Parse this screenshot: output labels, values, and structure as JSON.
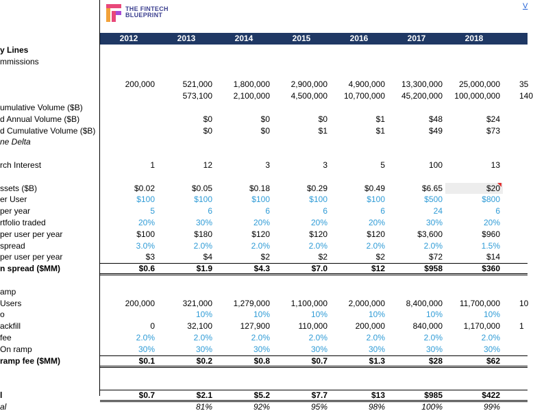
{
  "logo": {
    "line1": "THE FINTECH",
    "line2": "BLUEPRINT"
  },
  "top_link": "V",
  "years": [
    "2012",
    "2013",
    "2014",
    "2015",
    "2016",
    "2017",
    "2018"
  ],
  "rows": [
    {
      "label": "y Lines",
      "style": "bold",
      "align": "left",
      "values": [
        "",
        "",
        "",
        "",
        "",
        "",
        ""
      ]
    },
    {
      "label": "mmissions",
      "align": "left",
      "values": [
        "",
        "",
        "",
        "",
        "",
        "",
        ""
      ]
    },
    {
      "label": "",
      "values": [
        "",
        "",
        "",
        "",
        "",
        "",
        ""
      ]
    },
    {
      "label": "",
      "values": [
        "200,000",
        "521,000",
        "1,800,000",
        "2,900,000",
        "4,900,000",
        "13,300,000",
        "25,000,000"
      ],
      "overflow": "35"
    },
    {
      "label": "",
      "values": [
        "",
        "573,100",
        "2,100,000",
        "4,500,000",
        "10,700,000",
        "45,200,000",
        "100,000,000"
      ],
      "overflow": "140"
    },
    {
      "label": "umulative Volume ($B)",
      "align": "left",
      "values": [
        "",
        "",
        "",
        "",
        "",
        "",
        ""
      ]
    },
    {
      "label": "d Annual Volume ($B)",
      "align": "left",
      "values": [
        "",
        "$0",
        "$0",
        "$0",
        "$1",
        "$48",
        "$24"
      ]
    },
    {
      "label": "d Cumulative Volume ($B)",
      "align": "left",
      "values": [
        "",
        "$0",
        "$0",
        "$1",
        "$1",
        "$49",
        "$73"
      ]
    },
    {
      "label": "ne Delta",
      "style": "ital",
      "align": "left",
      "values": [
        "",
        "",
        "",
        "",
        "",
        "",
        ""
      ]
    },
    {
      "label": "",
      "values": [
        "",
        "",
        "",
        "",
        "",
        "",
        ""
      ]
    },
    {
      "label": "rch Interest",
      "align": "left",
      "values": [
        "1",
        "12",
        "3",
        "3",
        "5",
        "100",
        "13"
      ]
    },
    {
      "label": "",
      "values": [
        "",
        "",
        "",
        "",
        "",
        "",
        ""
      ]
    },
    {
      "label": "ssets ($B)",
      "align": "left",
      "values": [
        "$0.02",
        "$0.05",
        "$0.18",
        "$0.29",
        "$0.49",
        "$6.65",
        "$20"
      ]
    },
    {
      "label": "er User",
      "align": "left",
      "color": "blue",
      "values": [
        "$100",
        "$100",
        "$100",
        "$100",
        "$100",
        "$500",
        "$800"
      ]
    },
    {
      "label": "per year",
      "align": "left",
      "color": "blue",
      "values": [
        "5",
        "6",
        "6",
        "6",
        "6",
        "24",
        "6"
      ]
    },
    {
      "label": "rtfolio traded",
      "align": "left",
      "color": "blue",
      "values": [
        "20%",
        "30%",
        "20%",
        "20%",
        "20%",
        "30%",
        "20%"
      ]
    },
    {
      "label": "per user per year",
      "align": "left",
      "values": [
        "$100",
        "$180",
        "$120",
        "$120",
        "$120",
        "$3,600",
        "$960"
      ]
    },
    {
      "label": "spread",
      "align": "left",
      "color": "blue",
      "values": [
        "3.0%",
        "2.0%",
        "2.0%",
        "2.0%",
        "2.0%",
        "2.0%",
        "1.5%"
      ]
    },
    {
      "label": "per user per year",
      "align": "left",
      "values": [
        "$3",
        "$4",
        "$2",
        "$2",
        "$2",
        "$72",
        "$14"
      ]
    },
    {
      "label": "n spread ($MM)",
      "align": "left",
      "style": "bold",
      "line": "total",
      "values": [
        "$0.6",
        "$1.9",
        "$4.3",
        "$7.0",
        "$12",
        "$958",
        "$360"
      ]
    },
    {
      "label": "",
      "values": [
        "",
        "",
        "",
        "",
        "",
        "",
        ""
      ]
    },
    {
      "label": "amp",
      "align": "left",
      "values": [
        "",
        "",
        "",
        "",
        "",
        "",
        ""
      ]
    },
    {
      "label": "Users",
      "align": "left",
      "values": [
        "200,000",
        "321,000",
        "1,279,000",
        "1,100,000",
        "2,000,000",
        "8,400,000",
        "11,700,000"
      ],
      "overflow": "10"
    },
    {
      "label": "o",
      "align": "left",
      "color": "blue",
      "values": [
        "",
        "10%",
        "10%",
        "10%",
        "10%",
        "10%",
        "10%"
      ]
    },
    {
      "label": "ackfill",
      "align": "left",
      "values": [
        "0",
        "32,100",
        "127,900",
        "110,000",
        "200,000",
        "840,000",
        "1,170,000"
      ],
      "overflow": "1"
    },
    {
      "label": "fee",
      "align": "left",
      "color": "blue",
      "values": [
        "2.0%",
        "2.0%",
        "2.0%",
        "2.0%",
        "2.0%",
        "2.0%",
        "2.0%"
      ]
    },
    {
      "label": "On ramp",
      "align": "left",
      "color": "blue",
      "values": [
        "30%",
        "30%",
        "30%",
        "30%",
        "30%",
        "30%",
        "30%"
      ]
    },
    {
      "label": "ramp fee ($MM)",
      "align": "left",
      "style": "bold",
      "line": "total",
      "values": [
        "$0.1",
        "$0.2",
        "$0.8",
        "$0.7",
        "$1.3",
        "$28",
        "$62"
      ]
    },
    {
      "label": "",
      "values": [
        "",
        "",
        "",
        "",
        "",
        "",
        ""
      ]
    },
    {
      "label": "",
      "values": [
        "",
        "",
        "",
        "",
        "",
        "",
        ""
      ]
    },
    {
      "label": "l",
      "align": "left",
      "style": "bold",
      "line": "total",
      "values": [
        "$0.7",
        "$2.1",
        "$5.2",
        "$7.7",
        "$13",
        "$985",
        "$422"
      ]
    },
    {
      "label": "al",
      "align": "left",
      "style": "ital",
      "values": [
        "",
        "81%",
        "92%",
        "95%",
        "98%",
        "100%",
        "99%"
      ]
    }
  ]
}
